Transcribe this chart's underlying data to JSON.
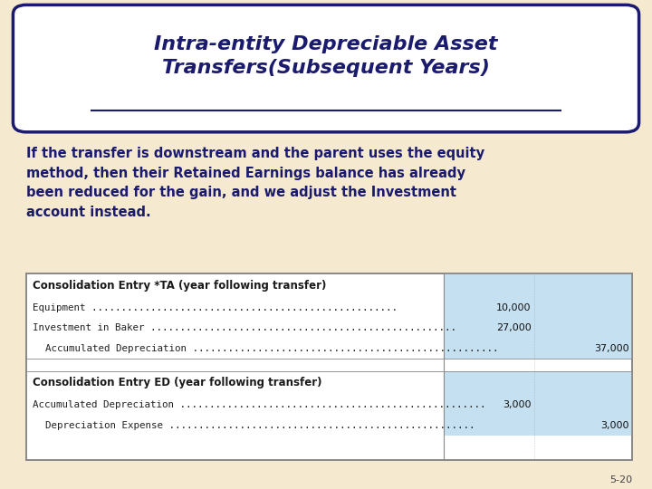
{
  "title_line1": "Intra-entity Depreciable Asset",
  "title_line2": "Transfers(Subsequent Years)",
  "body_text": "If the transfer is downstream and the parent uses the equity\nmethod, then their Retained Earnings balance has already\nbeen reduced for the gain, and we adjust the Investment\naccount instead.",
  "bg_color": "#f5e9d0",
  "title_box_color": "#ffffff",
  "title_border_color": "#1a1a6e",
  "title_text_color": "#1a1a6e",
  "body_text_color": "#1a1a6e",
  "table_border_color": "#888888",
  "table_blue_bg": "#c5e0f0",
  "table_white_bg": "#ffffff",
  "slide_number": "5-20",
  "table_data": {
    "section1_header": "Consolidation Entry *TA (year following transfer)",
    "section1_rows": [
      {
        "label": "Equipment",
        "debit": "10,000",
        "credit": "",
        "indent": false
      },
      {
        "label": "Investment in Baker",
        "debit": "27,000",
        "credit": "",
        "indent": false
      },
      {
        "label": "Accumulated Depreciation",
        "debit": "",
        "credit": "37,000",
        "indent": true
      }
    ],
    "section2_header": "Consolidation Entry ED (year following transfer)",
    "section2_rows": [
      {
        "label": "Accumulated Depreciation",
        "debit": "3,000",
        "credit": "",
        "indent": false
      },
      {
        "label": "Depreciation Expense",
        "debit": "",
        "credit": "3,000",
        "indent": true
      }
    ]
  }
}
